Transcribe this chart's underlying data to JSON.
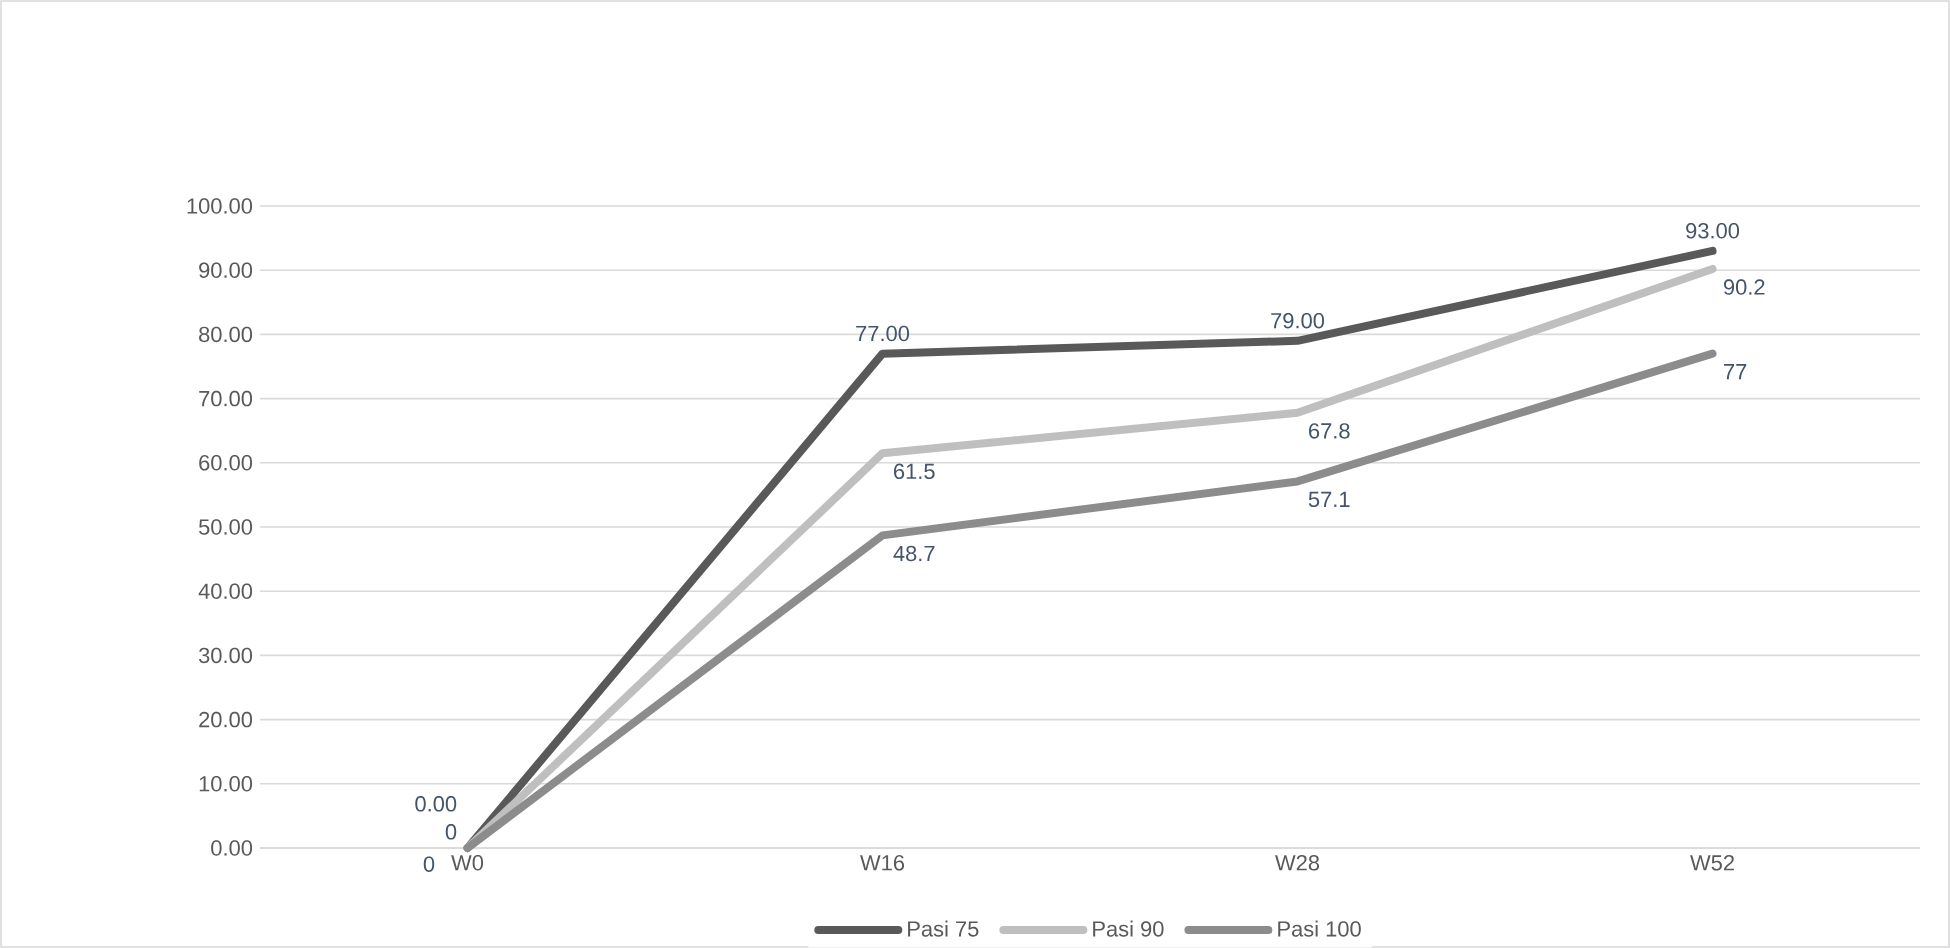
{
  "chart_data": {
    "type": "line",
    "categories": [
      "W0",
      "W16",
      "W28",
      "W52"
    ],
    "series": [
      {
        "name": "Pasi 75",
        "color": "#595959",
        "values": [
          0,
          77,
          79,
          93
        ],
        "value_labels": [
          "0.00",
          "77.00",
          "79.00",
          "93.00"
        ]
      },
      {
        "name": "Pasi 90",
        "color": "#bfbfbf",
        "values": [
          0,
          61.5,
          67.8,
          90.2
        ],
        "value_labels": [
          "0",
          "61.5",
          "67.8",
          "90.2"
        ]
      },
      {
        "name": "Pasi 100",
        "color": "#8c8c8c",
        "values": [
          0,
          48.7,
          57.1,
          77
        ],
        "value_labels": [
          "0",
          "48.7",
          "57.1",
          "77"
        ]
      }
    ],
    "ylim": [
      0,
      100
    ],
    "yticks": [
      {
        "value": 0,
        "label": "0.00"
      },
      {
        "value": 10,
        "label": "10.00"
      },
      {
        "value": 20,
        "label": "20.00"
      },
      {
        "value": 30,
        "label": "30.00"
      },
      {
        "value": 40,
        "label": "40.00"
      },
      {
        "value": 50,
        "label": "50.00"
      },
      {
        "value": 60,
        "label": "60.00"
      },
      {
        "value": 70,
        "label": "70.00"
      },
      {
        "value": 80,
        "label": "80.00"
      },
      {
        "value": 90,
        "label": "90.00"
      },
      {
        "value": 100,
        "label": "100.00"
      }
    ],
    "grid": "y",
    "legend": "bottom",
    "marker": "none",
    "line_style": "solid"
  }
}
